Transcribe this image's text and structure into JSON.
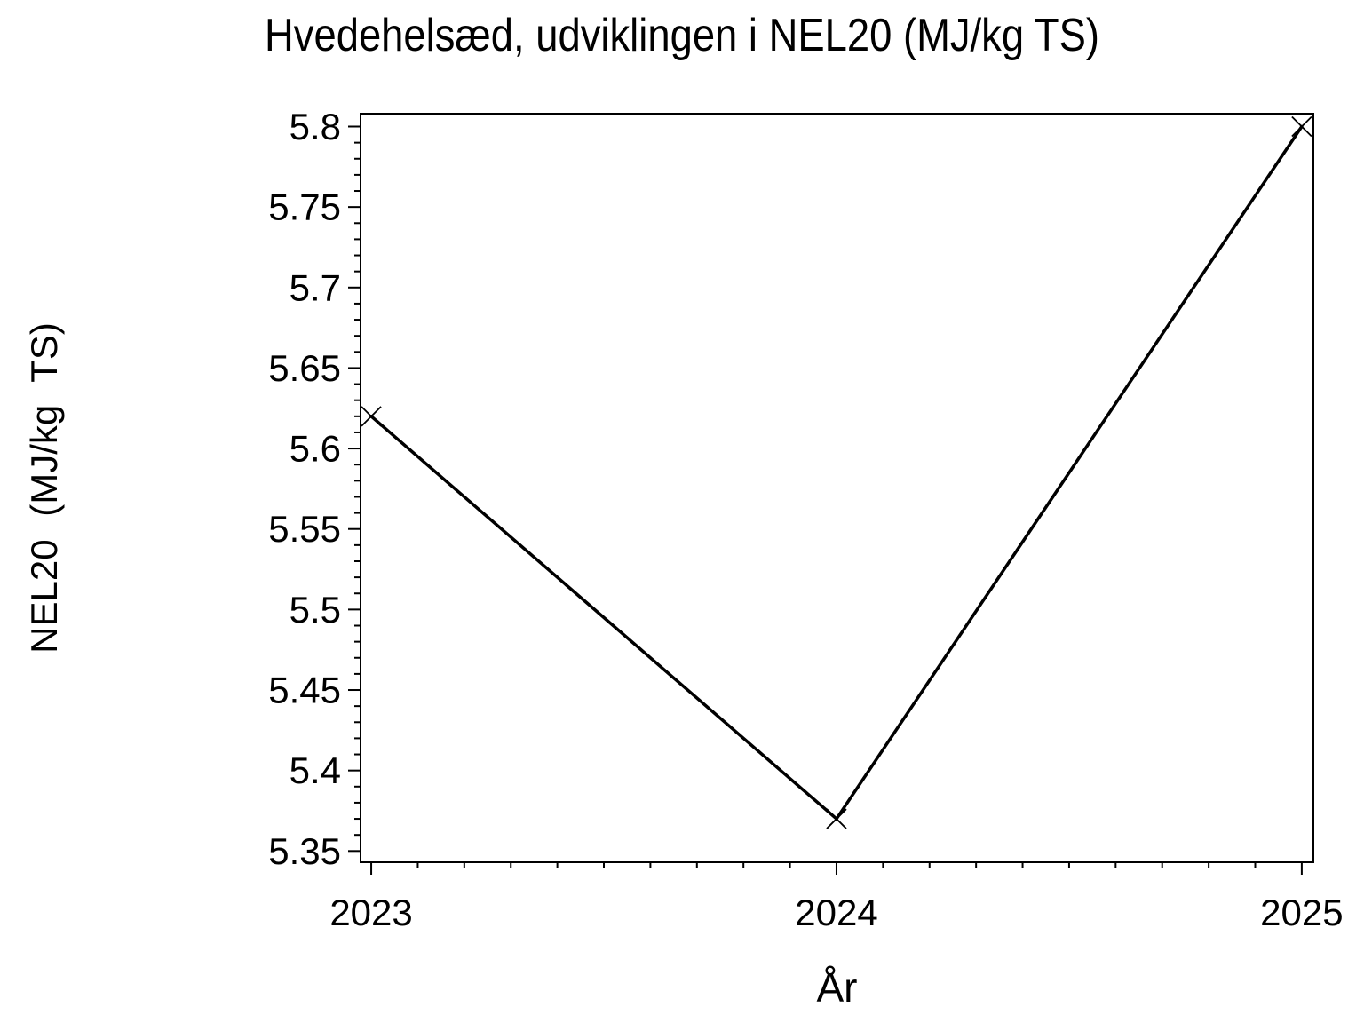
{
  "figure": {
    "background": "#ffffff",
    "foreground": "#000000"
  },
  "chart_data": {
    "type": "line",
    "title": "Hvedehelsæd, udviklingen i NEL20 (MJ/kg TS)",
    "xlabel": "År",
    "ylabel": "NEL20 (MJ/kg TS)",
    "x": [
      2023,
      2024,
      2025
    ],
    "series": [
      {
        "name": "NEL20",
        "values": [
          5.62,
          5.37,
          5.8
        ]
      }
    ],
    "x_ticks_major": [
      2023,
      2024,
      2025
    ],
    "x_tick_labels": [
      "2023",
      "2024",
      "2025"
    ],
    "x_minor_step": 0.1,
    "y_ticks_major": [
      5.35,
      5.4,
      5.45,
      5.5,
      5.55,
      5.6,
      5.65,
      5.7,
      5.75,
      5.8
    ],
    "y_minor_step": 0.01,
    "xlim": [
      2022.977,
      2025.025
    ],
    "ylim": [
      5.343,
      5.808
    ],
    "grid": false,
    "frame": true,
    "legend": "none",
    "marker": "x",
    "line_color": "#000000",
    "marker_color": "#000000"
  }
}
